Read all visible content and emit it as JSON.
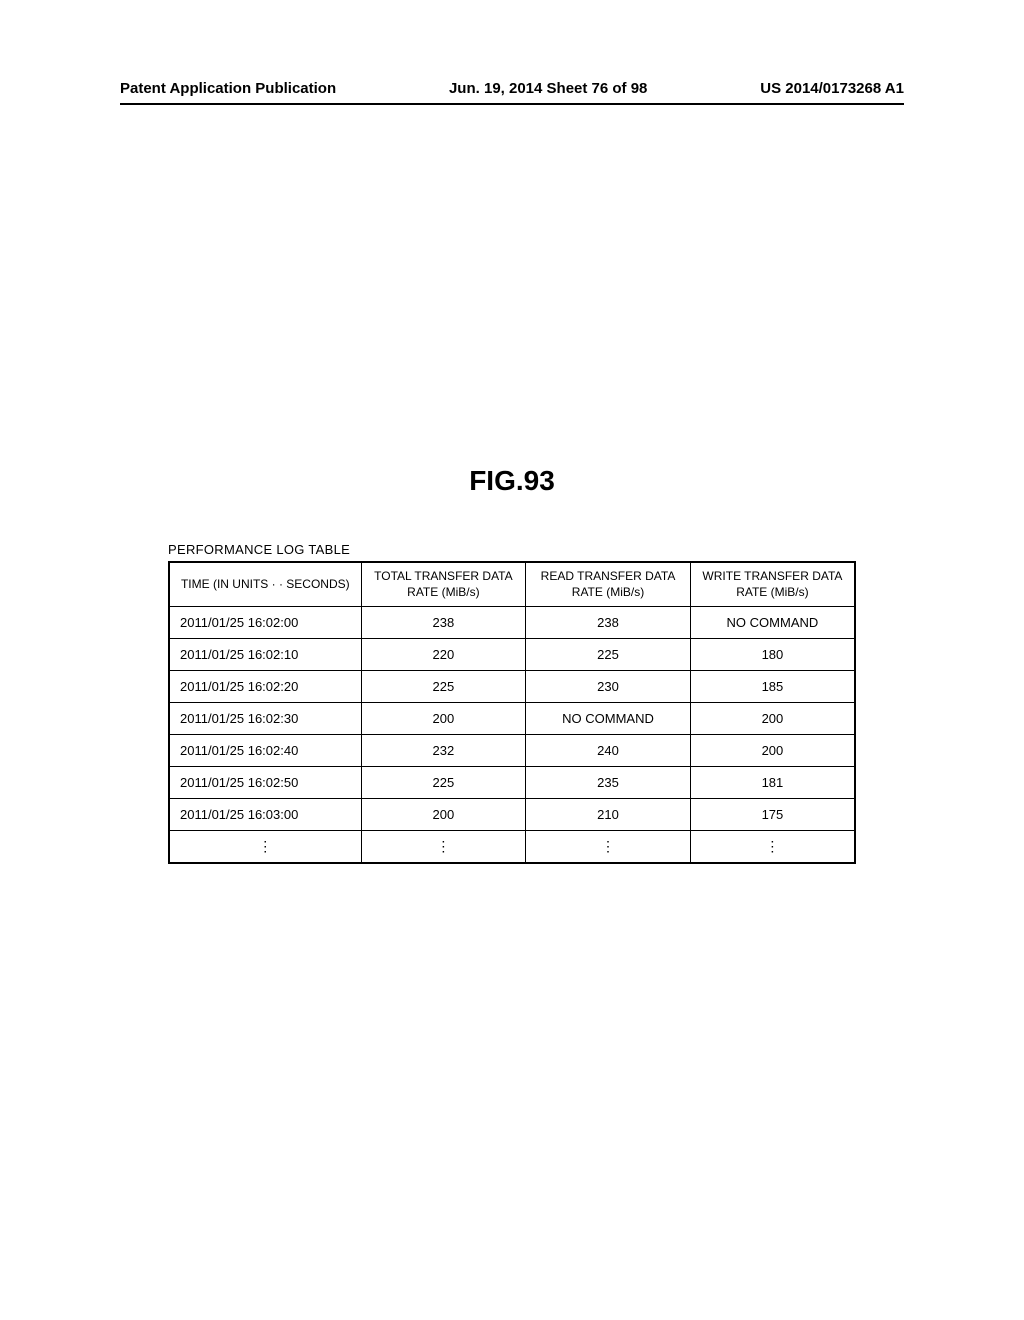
{
  "header": {
    "left": "Patent Application Publication",
    "center": "Jun. 19, 2014  Sheet 76 of 98",
    "right": "US 2014/0173268 A1"
  },
  "figure": {
    "title": "FIG.93",
    "caption": "PERFORMANCE LOG TABLE"
  },
  "table": {
    "columns": [
      "TIME (IN UNITS · · SECONDS)",
      "TOTAL TRANSFER DATA RATE (MiB/s)",
      "READ TRANSFER DATA RATE (MiB/s)",
      "WRITE TRANSFER DATA RATE (MiB/s)"
    ],
    "column_widths": [
      "28%",
      "24%",
      "24%",
      "24%"
    ],
    "rows": [
      [
        "2011/01/25 16:02:00",
        "238",
        "238",
        "NO COMMAND"
      ],
      [
        "2011/01/25 16:02:10",
        "220",
        "225",
        "180"
      ],
      [
        "2011/01/25 16:02:20",
        "225",
        "230",
        "185"
      ],
      [
        "2011/01/25 16:02:30",
        "200",
        "NO COMMAND",
        "200"
      ],
      [
        "2011/01/25 16:02:40",
        "232",
        "240",
        "200"
      ],
      [
        "2011/01/25 16:02:50",
        "225",
        "235",
        "181"
      ],
      [
        "2011/01/25 16:03:00",
        "200",
        "210",
        "175"
      ]
    ],
    "ellipsis": "⋮",
    "header_fontsize": 12,
    "body_fontsize": 13,
    "border_color": "#000000",
    "background_color": "#ffffff"
  }
}
